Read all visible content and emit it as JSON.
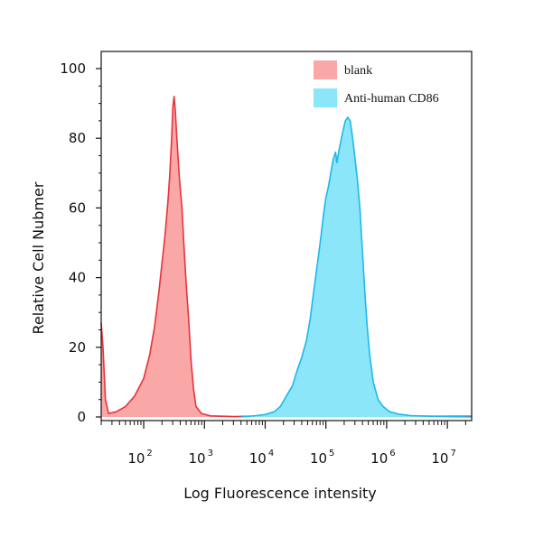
{
  "chart_data": {
    "type": "area",
    "xlabel": "Log Fluorescence intensity",
    "ylabel": "Relative Cell Nubmer",
    "x_scale": "log",
    "xlim": [
      1.3,
      7.4
    ],
    "ylim": [
      0,
      100
    ],
    "x_ticks": [
      {
        "value": 2,
        "base": "10",
        "exp": "2"
      },
      {
        "value": 3,
        "base": "10",
        "exp": "3"
      },
      {
        "value": 4,
        "base": "10",
        "exp": "4"
      },
      {
        "value": 5,
        "base": "10",
        "exp": "5"
      },
      {
        "value": 6,
        "base": "10",
        "exp": "6"
      },
      {
        "value": 7,
        "base": "10",
        "exp": "7"
      }
    ],
    "y_ticks": [
      {
        "value": 0,
        "label": "0"
      },
      {
        "value": 20,
        "label": "20"
      },
      {
        "value": 40,
        "label": "40"
      },
      {
        "value": 60,
        "label": "60"
      },
      {
        "value": 80,
        "label": "80"
      },
      {
        "value": 100,
        "label": "100"
      }
    ],
    "grid": false,
    "legend_position": "top-right",
    "series": [
      {
        "name": "blank",
        "fill": "#f9a7a7",
        "stroke": "#e8333a",
        "points": [
          [
            1.3,
            27
          ],
          [
            1.33,
            20
          ],
          [
            1.37,
            5
          ],
          [
            1.42,
            1
          ],
          [
            1.55,
            1.5
          ],
          [
            1.7,
            3
          ],
          [
            1.85,
            6
          ],
          [
            2.0,
            11
          ],
          [
            2.1,
            18
          ],
          [
            2.18,
            26
          ],
          [
            2.25,
            36
          ],
          [
            2.3,
            44
          ],
          [
            2.35,
            52
          ],
          [
            2.4,
            62
          ],
          [
            2.43,
            70
          ],
          [
            2.46,
            80
          ],
          [
            2.48,
            89
          ],
          [
            2.5,
            92
          ],
          [
            2.52,
            88
          ],
          [
            2.54,
            82
          ],
          [
            2.56,
            76
          ],
          [
            2.59,
            68
          ],
          [
            2.61,
            64
          ],
          [
            2.63,
            60
          ],
          [
            2.66,
            50
          ],
          [
            2.7,
            38
          ],
          [
            2.74,
            28
          ],
          [
            2.78,
            16
          ],
          [
            2.82,
            8
          ],
          [
            2.86,
            3
          ],
          [
            2.95,
            1
          ],
          [
            3.1,
            0.3
          ],
          [
            3.5,
            0.1
          ],
          [
            4.0,
            0.3
          ],
          [
            4.5,
            0.2
          ],
          [
            5.0,
            0.3
          ],
          [
            5.5,
            0.3
          ],
          [
            6.0,
            0.2
          ],
          [
            6.5,
            0.2
          ],
          [
            7.0,
            0.2
          ],
          [
            7.4,
            0.2
          ]
        ]
      },
      {
        "name": "Anti-human CD86",
        "fill": "#8ae6f8",
        "stroke": "#1fb8ea",
        "points": [
          [
            3.6,
            0
          ],
          [
            3.85,
            0.4
          ],
          [
            4.0,
            0.7
          ],
          [
            4.15,
            1.5
          ],
          [
            4.25,
            3
          ],
          [
            4.35,
            6
          ],
          [
            4.45,
            9
          ],
          [
            4.52,
            13
          ],
          [
            4.6,
            17
          ],
          [
            4.68,
            22
          ],
          [
            4.74,
            28
          ],
          [
            4.8,
            36
          ],
          [
            4.86,
            44
          ],
          [
            4.92,
            52
          ],
          [
            4.96,
            58
          ],
          [
            5.0,
            63
          ],
          [
            5.04,
            66
          ],
          [
            5.08,
            70
          ],
          [
            5.12,
            74
          ],
          [
            5.16,
            76
          ],
          [
            5.18,
            73
          ],
          [
            5.22,
            77
          ],
          [
            5.28,
            82
          ],
          [
            5.32,
            85
          ],
          [
            5.36,
            86
          ],
          [
            5.4,
            85
          ],
          [
            5.44,
            80
          ],
          [
            5.48,
            74
          ],
          [
            5.52,
            68
          ],
          [
            5.56,
            60
          ],
          [
            5.6,
            48
          ],
          [
            5.64,
            36
          ],
          [
            5.68,
            26
          ],
          [
            5.72,
            18
          ],
          [
            5.78,
            10
          ],
          [
            5.86,
            5
          ],
          [
            5.94,
            3
          ],
          [
            6.05,
            1.5
          ],
          [
            6.2,
            0.8
          ],
          [
            6.4,
            0.4
          ],
          [
            6.7,
            0.2
          ],
          [
            7.4,
            0
          ]
        ]
      }
    ]
  }
}
